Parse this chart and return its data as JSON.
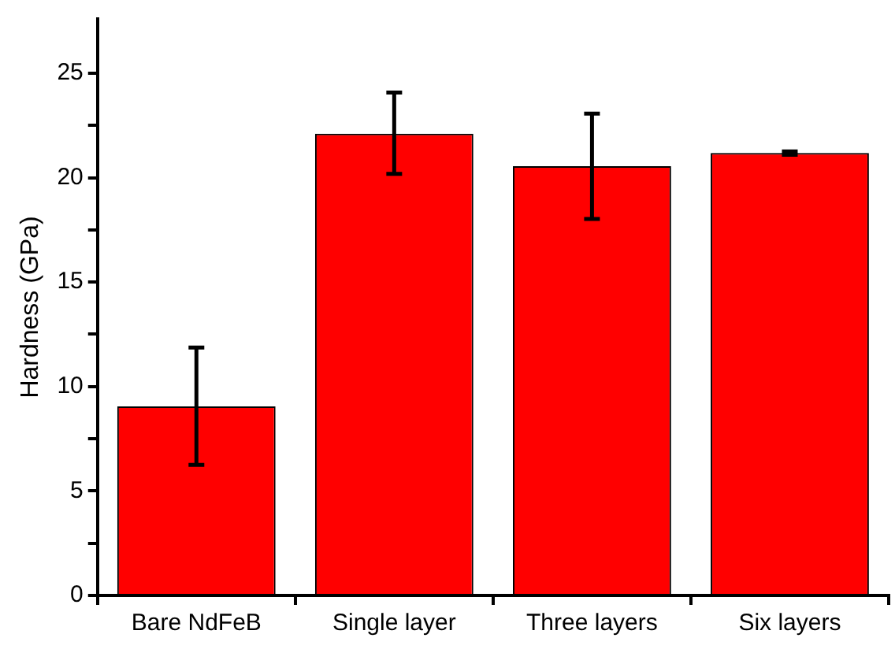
{
  "chart_data": {
    "type": "bar",
    "ylabel": "Hardness (GPa)",
    "categories": [
      "Bare NdFeB",
      "Single layer",
      "Three layers",
      "Six layers"
    ],
    "values": [
      9.05,
      22.1,
      20.55,
      21.18
    ],
    "errors": [
      [
        6.25,
        11.87
      ],
      [
        20.18,
        24.07
      ],
      [
        18.02,
        23.07
      ],
      [
        21.1,
        21.26
      ]
    ],
    "color": "#ff0000",
    "ylim": [
      0,
      27.6
    ],
    "yticks": [
      0,
      {
        "value": 2.5,
        "label": null
      },
      5,
      {
        "value": 7.5,
        "label": null
      },
      10,
      {
        "value": 12.5,
        "label": null
      },
      15,
      {
        "value": 17.5,
        "label": null
      },
      20,
      {
        "value": 22.5,
        "label": null
      },
      25
    ],
    "grid": false,
    "legend": false
  }
}
